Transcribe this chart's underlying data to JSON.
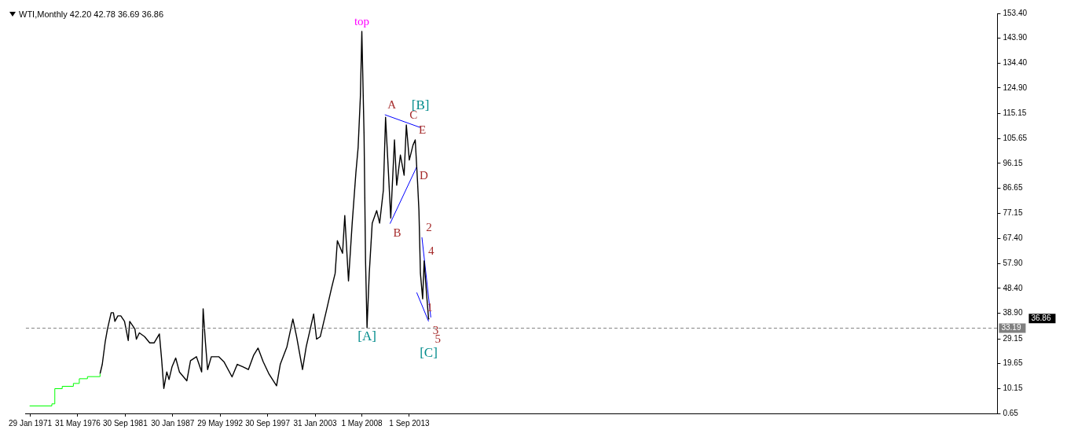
{
  "chart_data": {
    "type": "line",
    "title": "WTI,Monthly  42.20 42.78 36.69 36.86",
    "xlim": [
      "1970-08",
      "2079-10"
    ],
    "xticks": [
      {
        "value": "1971-01-29",
        "label": "29 Jan 1971"
      },
      {
        "value": "1976-05-31",
        "label": "31 May 1976"
      },
      {
        "value": "1981-09-30",
        "label": "30 Sep 1981"
      },
      {
        "value": "1987-01-30",
        "label": "30 Jan 1987"
      },
      {
        "value": "1992-05-29",
        "label": "29 May 1992"
      },
      {
        "value": "1997-09-30",
        "label": "30 Sep 1997"
      },
      {
        "value": "2003-01-31",
        "label": "31 Jan 2003"
      },
      {
        "value": "2008-05-01",
        "label": "1 May 2008"
      },
      {
        "value": "2013-09-01",
        "label": "1 Sep 2013"
      }
    ],
    "ylim": [
      0.65,
      153.4
    ],
    "yticks": [
      {
        "value": 0.65,
        "label": "0.65"
      },
      {
        "value": 10.15,
        "label": "10.15"
      },
      {
        "value": 19.65,
        "label": "19.65"
      },
      {
        "value": 29.15,
        "label": "29.15"
      },
      {
        "value": 38.9,
        "label": "38.90"
      },
      {
        "value": 48.4,
        "label": "48.40"
      },
      {
        "value": 57.9,
        "label": "57.90"
      },
      {
        "value": 67.4,
        "label": "67.40"
      },
      {
        "value": 77.15,
        "label": "77.15"
      },
      {
        "value": 86.65,
        "label": "86.65"
      },
      {
        "value": 96.15,
        "label": "96.15"
      },
      {
        "value": 105.65,
        "label": "105.65"
      },
      {
        "value": 115.15,
        "label": "115.15"
      },
      {
        "value": 124.9,
        "label": "124.90"
      },
      {
        "value": 134.4,
        "label": "134.40"
      },
      {
        "value": 143.9,
        "label": "143.90"
      },
      {
        "value": 153.4,
        "label": "153.40"
      }
    ],
    "grid": false,
    "legend": false,
    "marker": "none",
    "series": [
      {
        "type": "step",
        "color": "#00ff00",
        "x": [
          "1971-01",
          "1973-07",
          "1973-11",
          "1974-09",
          "1975-12",
          "1976-08",
          "1977-07",
          "1978-12"
        ],
        "values": [
          3.5,
          4.3,
          10.1,
          11.0,
          12.1,
          13.9,
          14.7,
          15.8
        ]
      },
      {
        "color": "#000000",
        "x": [
          "1978-12",
          "1979-03",
          "1979-07",
          "1979-10",
          "1980-03",
          "1980-06",
          "1980-08",
          "1980-12",
          "1981-04",
          "1981-09",
          "1982-02",
          "1982-04",
          "1982-11",
          "1983-01",
          "1983-05",
          "1983-12",
          "1984-07",
          "1985-01",
          "1985-08",
          "1985-11",
          "1986-02",
          "1986-06",
          "1986-09",
          "1987-01",
          "1987-06",
          "1987-11",
          "1988-09",
          "1989-02",
          "1989-10",
          "1990-05",
          "1990-07",
          "1990-10",
          "1991-01",
          "1991-06",
          "1992-04",
          "1992-11",
          "1993-10",
          "1994-05",
          "1995-01",
          "1995-08",
          "1996-03",
          "1996-09",
          "1997-04",
          "1997-12",
          "1998-10",
          "1999-03",
          "1999-12",
          "2000-08",
          "2001-01",
          "2001-09",
          "2002-02",
          "2002-12",
          "2003-04",
          "2003-09",
          "2004-05",
          "2004-12",
          "2005-05",
          "2005-08",
          "2006-03",
          "2006-06",
          "2006-11",
          "2007-04",
          "2007-09",
          "2007-12",
          "2008-03",
          "2008-05",
          "2008-08",
          "2008-10",
          "2008-12",
          "2009-03",
          "2009-07",
          "2010-01",
          "2010-05",
          "2010-10",
          "2011-01",
          "2011-04",
          "2011-08",
          "2012-01",
          "2012-04",
          "2012-09",
          "2013-02",
          "2013-05",
          "2013-09",
          "2014-02",
          "2014-05",
          "2014-08",
          "2014-10",
          "2014-12",
          "2015-03",
          "2015-05",
          "2015-08",
          "2015-11",
          "2015-12"
        ],
        "values": [
          15.8,
          19.4,
          28.1,
          32.9,
          39.1,
          39.1,
          35.8,
          37.9,
          37.9,
          35.8,
          28.5,
          35.8,
          32.9,
          29.0,
          31.4,
          30.0,
          27.6,
          27.6,
          31.0,
          21.4,
          10.2,
          16.5,
          13.6,
          18.4,
          21.8,
          16.5,
          13.1,
          20.8,
          22.3,
          16.5,
          40.6,
          28.1,
          17.4,
          22.3,
          22.3,
          20.4,
          14.6,
          19.4,
          18.4,
          17.4,
          22.8,
          25.6,
          20.4,
          15.6,
          11.2,
          19.4,
          26.1,
          36.7,
          30.0,
          17.4,
          26.1,
          38.6,
          29.0,
          30.0,
          39.6,
          48.3,
          54.1,
          66.6,
          61.8,
          76.2,
          51.2,
          73.3,
          92.6,
          102.2,
          121.4,
          146.5,
          107.0,
          58.9,
          33.4,
          54.1,
          73.3,
          78.1,
          73.3,
          85.8,
          113.7,
          97.4,
          75.2,
          105.1,
          87.8,
          99.3,
          91.6,
          110.8,
          97.4,
          103.1,
          105.1,
          89.7,
          78.1,
          54.1,
          44.4,
          58.9,
          47.3,
          36.7,
          36.86
        ]
      },
      {
        "type": "line",
        "color": "#0000ff",
        "x": [
          "2010-12",
          "2014-12"
        ],
        "values": [
          114.7,
          109.8
        ]
      },
      {
        "type": "line",
        "color": "#0000ff",
        "x": [
          "2011-07",
          "2014-07"
        ],
        "values": [
          73.1,
          94.8
        ]
      },
      {
        "type": "line",
        "color": "#0000ff",
        "x": [
          "2015-02",
          "2016-02"
        ],
        "values": [
          67.9,
          37.3
        ]
      },
      {
        "type": "line",
        "color": "#0000ff",
        "x": [
          "2014-07",
          "2015-11"
        ],
        "values": [
          46.8,
          35.8
        ]
      }
    ],
    "ref_lines": [
      {
        "axis": "y",
        "value": 33.19,
        "label": "33.19",
        "color": "#808080",
        "line_style": "dashed"
      }
    ],
    "annotations": [
      {
        "text": "top",
        "x": "2008-05",
        "y": 146.5
      },
      {
        "text": "A",
        "x": "2010-12",
        "y": 114.7
      },
      {
        "text": "B",
        "x": "2011-07",
        "y": 73.1
      },
      {
        "text": "C",
        "x": "2013-05",
        "y": 110.8
      },
      {
        "text": "D",
        "x": "2014-07",
        "y": 94.8
      },
      {
        "text": "E",
        "x": "2014-05",
        "y": 105.1
      },
      {
        "text": "1",
        "x": "2015-03",
        "y": 44.4
      },
      {
        "text": "2",
        "x": "2015-02",
        "y": 67.9
      },
      {
        "text": "3",
        "x": "2015-11",
        "y": 35.8
      },
      {
        "text": "4",
        "x": "2015-05",
        "y": 58.9
      },
      {
        "text": "5",
        "x": "2016-02",
        "y": 37.3
      },
      {
        "text": "[A]",
        "x": "2008-12",
        "y": 33.4
      },
      {
        "text": "[B]",
        "x": "2014-12",
        "y": 109.8
      },
      {
        "text": "[C]",
        "x": "2015-11",
        "y": 36.7
      },
      "36.86"
    ]
  }
}
